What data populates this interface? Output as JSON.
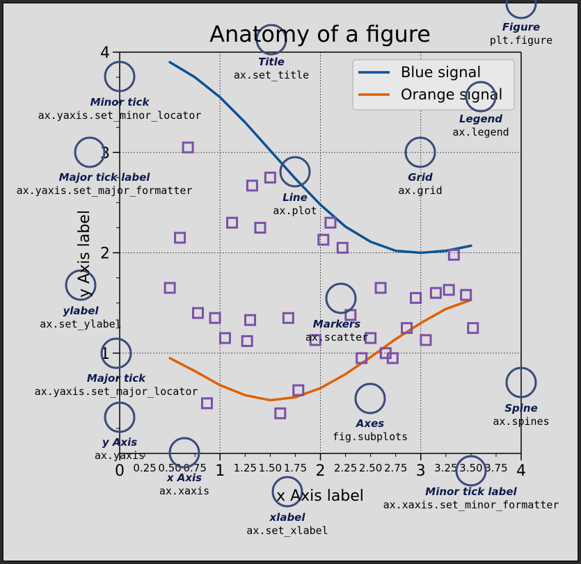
{
  "chart_data": {
    "type": "line",
    "title": "Anatomy of a figure",
    "xlabel": "x Axis label",
    "ylabel": "y Axis label",
    "xlim": [
      0,
      4
    ],
    "ylim": [
      0,
      4
    ],
    "grid": true,
    "legend_position": "top-right",
    "x_major_ticks": [
      "0",
      "1",
      "2",
      "3",
      "4"
    ],
    "x_minor_ticks": [
      "0.25",
      "0.50",
      "0.75",
      "1.25",
      "1.50",
      "1.75",
      "2.25",
      "2.50",
      "2.75",
      "3.25",
      "3.50",
      "3.75"
    ],
    "y_major_ticks": [
      "1",
      "2",
      "3",
      "4"
    ],
    "series": [
      {
        "name": "Blue signal",
        "color": "#0b5394",
        "x": [
          0.5,
          0.75,
          1.0,
          1.25,
          1.5,
          1.75,
          2.0,
          2.25,
          2.5,
          2.75,
          3.0,
          3.25,
          3.5
        ],
        "y": [
          3.9,
          3.75,
          3.55,
          3.3,
          3.02,
          2.74,
          2.48,
          2.26,
          2.11,
          2.02,
          2.0,
          2.02,
          2.07
        ]
      },
      {
        "name": "Orange signal",
        "color": "#e06000",
        "x": [
          0.5,
          0.75,
          1.0,
          1.25,
          1.5,
          1.75,
          2.0,
          2.25,
          2.5,
          2.75,
          3.0,
          3.25,
          3.5
        ],
        "y": [
          0.95,
          0.82,
          0.68,
          0.58,
          0.53,
          0.56,
          0.65,
          0.79,
          0.96,
          1.14,
          1.3,
          1.44,
          1.53
        ]
      },
      {
        "name": "Markers",
        "type": "scatter",
        "color": "#7b4fa8",
        "points": [
          [
            0.68,
            3.05
          ],
          [
            0.6,
            2.15
          ],
          [
            0.5,
            1.65
          ],
          [
            0.78,
            1.4
          ],
          [
            0.95,
            1.35
          ],
          [
            1.05,
            1.15
          ],
          [
            0.87,
            0.5
          ],
          [
            1.3,
            1.33
          ],
          [
            1.27,
            1.12
          ],
          [
            1.12,
            2.3
          ],
          [
            1.4,
            2.25
          ],
          [
            1.32,
            2.67
          ],
          [
            1.5,
            2.75
          ],
          [
            1.6,
            0.4
          ],
          [
            1.68,
            1.35
          ],
          [
            1.78,
            0.63
          ],
          [
            1.95,
            1.13
          ],
          [
            2.03,
            2.13
          ],
          [
            2.1,
            2.3
          ],
          [
            2.22,
            2.05
          ],
          [
            2.3,
            1.38
          ],
          [
            2.41,
            0.95
          ],
          [
            2.5,
            1.15
          ],
          [
            2.6,
            1.65
          ],
          [
            2.65,
            1.0
          ],
          [
            2.72,
            0.95
          ],
          [
            2.86,
            1.25
          ],
          [
            2.95,
            1.55
          ],
          [
            3.05,
            1.13
          ],
          [
            3.15,
            1.6
          ],
          [
            3.28,
            1.63
          ],
          [
            3.33,
            1.98
          ],
          [
            3.45,
            1.58
          ],
          [
            3.52,
            1.25
          ]
        ]
      }
    ]
  },
  "annotations": [
    {
      "title": "Figure",
      "code": "plt.figure"
    },
    {
      "title": "Title",
      "code": "ax.set_title"
    },
    {
      "title": "Legend",
      "code": "ax.legend"
    },
    {
      "title": "Minor tick",
      "code": "ax.yaxis.set_minor_locator"
    },
    {
      "title": "Major tick label",
      "code": "ax.yaxis.set_major_formatter"
    },
    {
      "title": "Grid",
      "code": "ax.grid"
    },
    {
      "title": "Line",
      "code": "ax.plot"
    },
    {
      "title": "ylabel",
      "code": "ax.set_ylabel"
    },
    {
      "title": "Markers",
      "code": "ax.scatter"
    },
    {
      "title": "Major tick",
      "code": "ax.yaxis.set_major_locator"
    },
    {
      "title": "Spine",
      "code": "ax.spines"
    },
    {
      "title": "Axes",
      "code": "fig.subplots"
    },
    {
      "title": "y Axis",
      "code": "ax.yaxis"
    },
    {
      "title": "x Axis",
      "code": "ax.xaxis"
    },
    {
      "title": "Minor tick label",
      "code": "ax.xaxis.set_minor_formatter"
    },
    {
      "title": "xlabel",
      "code": "ax.set_xlabel"
    }
  ],
  "colors": {
    "background": "#2b2b2b",
    "figure": "#dcdcdc",
    "annotation_ring": "#3b4a7a",
    "annotation_title": "#0d1b4c"
  }
}
